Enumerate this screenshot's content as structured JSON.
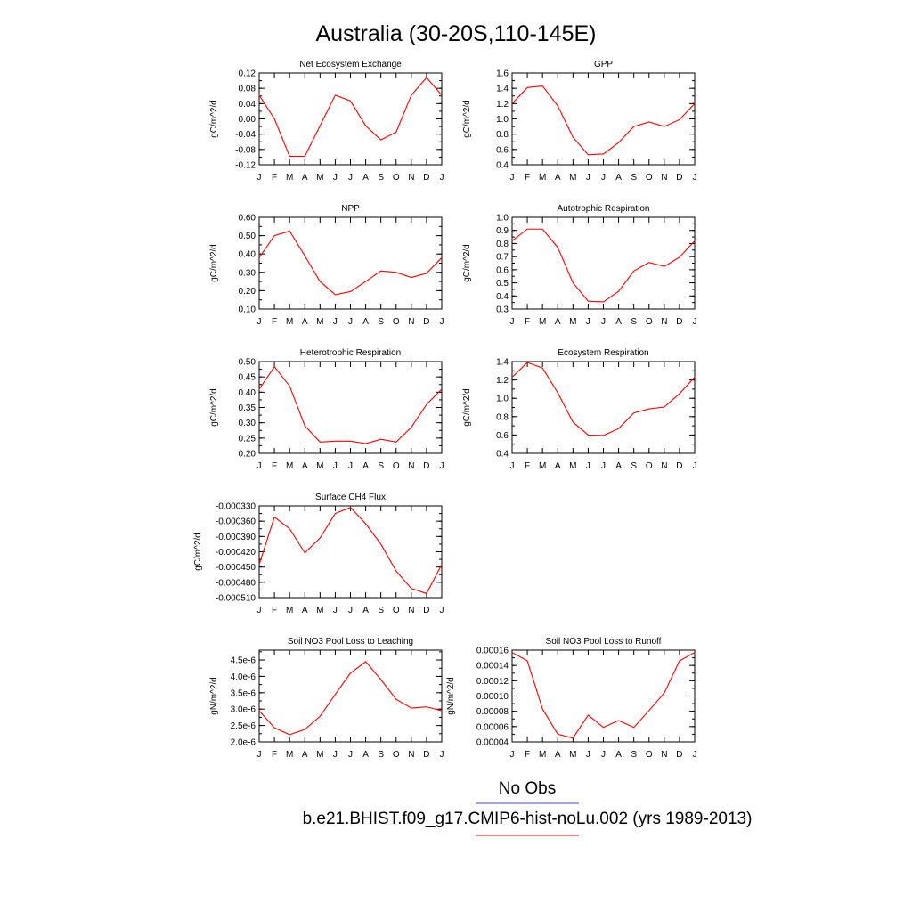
{
  "title": "Australia (30-20S,110-145E)",
  "months": [
    "J",
    "F",
    "M",
    "A",
    "M",
    "J",
    "J",
    "A",
    "S",
    "O",
    "N",
    "D",
    "J"
  ],
  "colors": {
    "model": "#ff0000",
    "obs": "#4040ff",
    "axis": "#000000"
  },
  "legend": {
    "obs_label": "No Obs",
    "model_label": "b.e21.BHIST.f09_g17.CMIP6-hist-noLu.002 (yrs 1989-2013)"
  },
  "chart_data": [
    {
      "type": "line",
      "title": "Net Ecosystem Exchange",
      "ylabel": "gC/m^2/d",
      "ylim": [
        -0.12,
        0.12
      ],
      "yticks": [
        -0.12,
        -0.08,
        -0.04,
        0.0,
        0.04,
        0.08,
        0.12
      ],
      "yticklabels": [
        "-0.12",
        "-0.08",
        "-0.04",
        "0.00",
        "0.04",
        "0.08",
        "0.12"
      ],
      "ytick_minor": 0.02,
      "values": [
        0.062,
        0.0,
        -0.098,
        -0.098,
        -0.018,
        0.062,
        0.047,
        -0.018,
        -0.055,
        -0.035,
        0.062,
        0.108,
        0.062
      ]
    },
    {
      "type": "line",
      "title": "GPP",
      "ylabel": "gC/m^2/d",
      "ylim": [
        0.4,
        1.6
      ],
      "yticks": [
        0.4,
        0.6,
        0.8,
        1.0,
        1.2,
        1.4,
        1.6
      ],
      "yticklabels": [
        "0.4",
        "0.6",
        "0.8",
        "1.0",
        "1.2",
        "1.4",
        "1.6"
      ],
      "ytick_minor": 0.1,
      "values": [
        1.2,
        1.41,
        1.43,
        1.17,
        0.76,
        0.53,
        0.54,
        0.69,
        0.9,
        0.96,
        0.9,
        0.99,
        1.2
      ]
    },
    {
      "type": "line",
      "title": "NPP",
      "ylabel": "gC/m^2/d",
      "ylim": [
        0.1,
        0.6
      ],
      "yticks": [
        0.1,
        0.2,
        0.3,
        0.4,
        0.5,
        0.6
      ],
      "yticklabels": [
        "0.10",
        "0.20",
        "0.30",
        "0.40",
        "0.50",
        "0.60"
      ],
      "ytick_minor": 0.05,
      "values": [
        0.38,
        0.5,
        0.525,
        0.39,
        0.25,
        0.178,
        0.195,
        0.25,
        0.308,
        0.3,
        0.272,
        0.295,
        0.38
      ]
    },
    {
      "type": "line",
      "title": "Autotrophic Respiration",
      "ylabel": "gC/m^2/d",
      "ylim": [
        0.3,
        1.0
      ],
      "yticks": [
        0.3,
        0.4,
        0.5,
        0.6,
        0.7,
        0.8,
        0.9,
        1.0
      ],
      "yticklabels": [
        "0.3",
        "0.4",
        "0.5",
        "0.6",
        "0.7",
        "0.8",
        "0.9",
        "1.0"
      ],
      "ytick_minor": 0.05,
      "values": [
        0.82,
        0.91,
        0.91,
        0.77,
        0.5,
        0.36,
        0.355,
        0.435,
        0.59,
        0.655,
        0.625,
        0.695,
        0.82
      ]
    },
    {
      "type": "line",
      "title": "Heterotrophic Respiration",
      "ylabel": "gC/m^2/d",
      "ylim": [
        0.2,
        0.5
      ],
      "yticks": [
        0.2,
        0.25,
        0.3,
        0.35,
        0.4,
        0.45,
        0.5
      ],
      "yticklabels": [
        "0.20",
        "0.25",
        "0.30",
        "0.35",
        "0.40",
        "0.45",
        "0.50"
      ],
      "ytick_minor": 0.025,
      "values": [
        0.41,
        0.483,
        0.42,
        0.29,
        0.237,
        0.24,
        0.24,
        0.232,
        0.246,
        0.237,
        0.285,
        0.36,
        0.41
      ]
    },
    {
      "type": "line",
      "title": "Ecosystem Respiration",
      "ylabel": "gC/m^2/d",
      "ylim": [
        0.4,
        1.4
      ],
      "yticks": [
        0.4,
        0.6,
        0.8,
        1.0,
        1.2,
        1.4
      ],
      "yticklabels": [
        "0.4",
        "0.6",
        "0.8",
        "1.0",
        "1.2",
        "1.4"
      ],
      "ytick_minor": 0.1,
      "values": [
        1.23,
        1.39,
        1.33,
        1.06,
        0.74,
        0.6,
        0.595,
        0.67,
        0.84,
        0.885,
        0.905,
        1.05,
        1.23
      ]
    },
    {
      "type": "line",
      "title": "Surface CH4 Flux",
      "ylabel": "gC/m^2/d",
      "ylim": [
        -0.00051,
        -0.00033
      ],
      "yticks": [
        -0.00051,
        -0.00048,
        -0.00045,
        -0.00042,
        -0.00039,
        -0.00036,
        -0.00033
      ],
      "yticklabels": [
        "-0.000510",
        "-0.000480",
        "-0.000450",
        "-0.000420",
        "-0.000390",
        "-0.000360",
        "-0.000330"
      ],
      "ytick_minor": 1.5e-05,
      "values": [
        -0.000445,
        -0.000352,
        -0.000375,
        -0.000422,
        -0.000393,
        -0.000345,
        -0.000333,
        -0.000365,
        -0.000405,
        -0.000458,
        -0.000492,
        -0.000502,
        -0.000445
      ]
    },
    {
      "type": "line",
      "title": "Soil NO3 Pool Loss to Leaching",
      "ylabel": "gN/m^2/d",
      "ylim": [
        2e-06,
        4.8e-06
      ],
      "yticks": [
        2e-06,
        2.5e-06,
        3e-06,
        3.5e-06,
        4e-06,
        4.5e-06
      ],
      "yticklabels": [
        "2.0e-6",
        "2.5e-6",
        "3.0e-6",
        "3.5e-6",
        "4.0e-6",
        "4.5e-6"
      ],
      "ytick_minor": 2.5e-07,
      "values": [
        2.95e-06,
        2.43e-06,
        2.22e-06,
        2.38e-06,
        2.78e-06,
        3.45e-06,
        4.1e-06,
        4.45e-06,
        3.9e-06,
        3.3e-06,
        3.03e-06,
        3.07e-06,
        2.95e-06
      ]
    },
    {
      "type": "line",
      "title": "Soil NO3 Pool Loss to Runoff",
      "ylabel": "gN/m^2/d",
      "ylim": [
        4e-05,
        0.00016
      ],
      "yticks": [
        4e-05,
        6e-05,
        8e-05,
        0.0001,
        0.00012,
        0.00014,
        0.00016
      ],
      "yticklabels": [
        "0.00004",
        "0.00006",
        "0.00008",
        "0.00010",
        "0.00012",
        "0.00014",
        "0.00016"
      ],
      "ytick_minor": 1e-05,
      "values": [
        0.000157,
        0.000146,
        8.3e-05,
        5e-05,
        4.5e-05,
        7.5e-05,
        5.9e-05,
        6.8e-05,
        5.9e-05,
        8.1e-05,
        0.000104,
        0.000146,
        0.000157
      ]
    }
  ]
}
